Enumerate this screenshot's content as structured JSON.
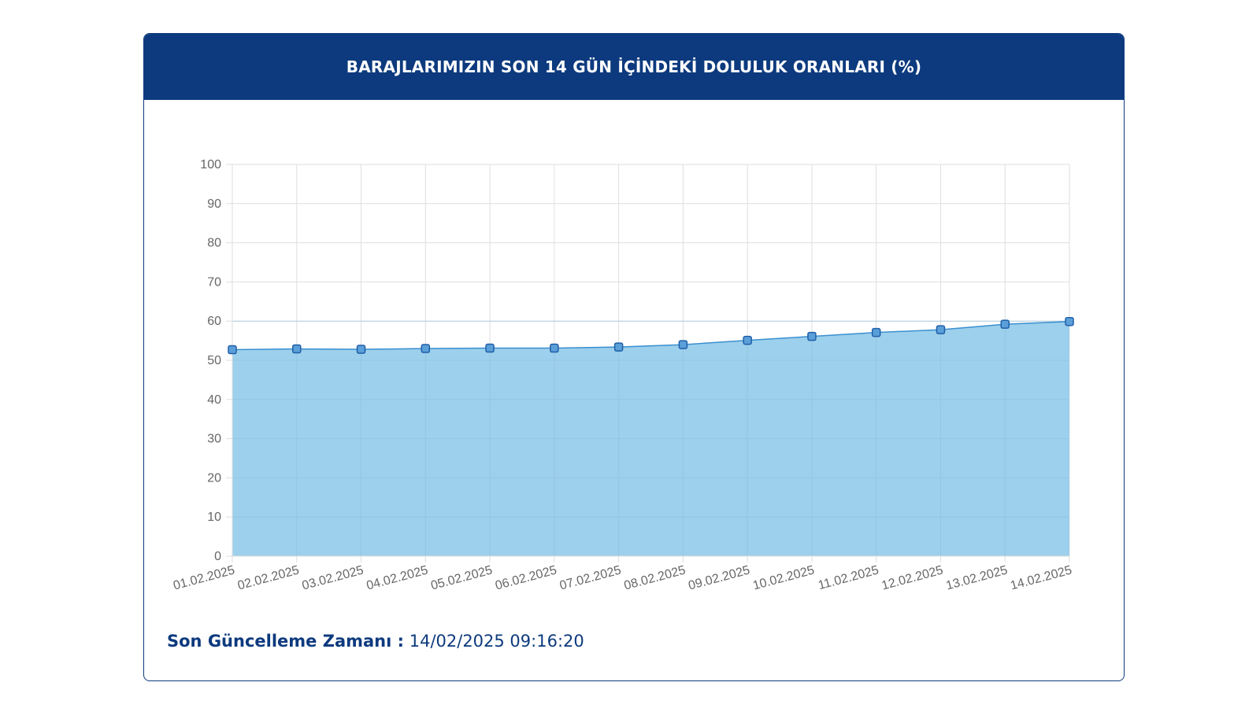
{
  "header": {
    "title": "BARAJLARIMIZIN SON 14 GÜN İÇİNDEKİ DOLULUK ORANLARI (%)"
  },
  "footer": {
    "label": "Son Güncelleme Zamanı :",
    "value": "14/02/2025 09:16:20"
  },
  "colors": {
    "header_bg": "#0d3a7e",
    "area_fill": "#9dd0ec",
    "line": "#3a8fd0",
    "marker_fill": "#5b9fd8",
    "marker_stroke": "#1f5fa8"
  },
  "chart_data": {
    "type": "area",
    "title": "BARAJLARIMIZIN SON 14 GÜN İÇİNDEKİ DOLULUK ORANLARI (%)",
    "categories": [
      "01.02.2025",
      "02.02.2025",
      "03.02.2025",
      "04.02.2025",
      "05.02.2025",
      "06.02.2025",
      "07.02.2025",
      "08.02.2025",
      "09.02.2025",
      "10.02.2025",
      "11.02.2025",
      "12.02.2025",
      "13.02.2025",
      "14.02.2025"
    ],
    "values": [
      52.7,
      52.9,
      52.8,
      53.0,
      53.1,
      53.1,
      53.4,
      54.0,
      55.1,
      56.1,
      57.1,
      57.8,
      59.2,
      59.9
    ],
    "ylim": [
      0,
      100
    ],
    "yticks": [
      "0",
      "10",
      "20",
      "30",
      "40",
      "50",
      "60",
      "70",
      "80",
      "90",
      "100"
    ],
    "grid": true
  }
}
